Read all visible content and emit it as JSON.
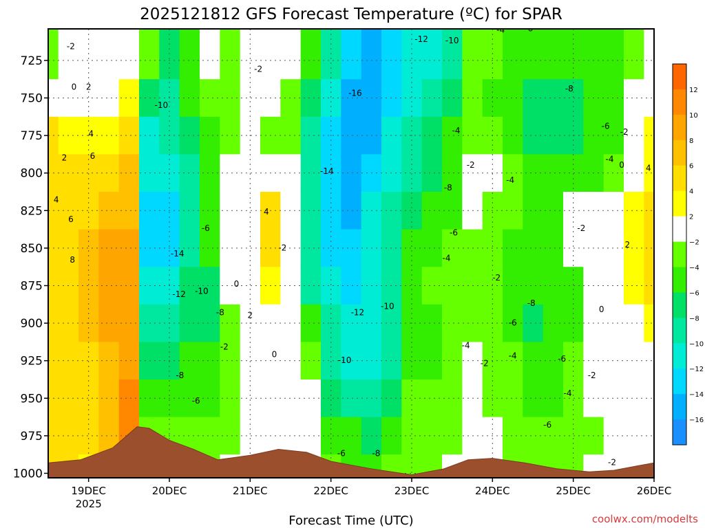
{
  "chart_data": {
    "type": "heatmap",
    "title": "2025121812 GFS Forecast Temperature (ºC) for SPAR",
    "xlabel": "Forecast Time (UTC)",
    "ylabel": "",
    "credit": "coolwx.com/modelts",
    "y_ticks": [
      "725",
      "750",
      "775",
      "800",
      "825",
      "850",
      "875",
      "900",
      "925",
      "950",
      "975",
      "1000"
    ],
    "y_values": [
      725,
      750,
      775,
      800,
      825,
      850,
      875,
      900,
      925,
      950,
      975,
      1000
    ],
    "ylim": [
      1003,
      704
    ],
    "y_direction": "pressure-down",
    "x_ticks": [
      {
        "label": "19DEC",
        "sub": "2025",
        "day": 19
      },
      {
        "label": "20DEC",
        "sub": "",
        "day": 20
      },
      {
        "label": "21DEC",
        "sub": "",
        "day": 21
      },
      {
        "label": "22DEC",
        "sub": "",
        "day": 22
      },
      {
        "label": "23DEC",
        "sub": "",
        "day": 23
      },
      {
        "label": "24DEC",
        "sub": "",
        "day": 24
      },
      {
        "label": "25DEC",
        "sub": "",
        "day": 25
      },
      {
        "label": "26DEC",
        "sub": "",
        "day": 26
      }
    ],
    "xlim": [
      18.5,
      26
    ],
    "grid": true,
    "colorbar": {
      "labels": [
        "12",
        "10",
        "8",
        "6",
        "4",
        "2",
        "−2",
        "−4",
        "−6",
        "−8",
        "−10",
        "−12",
        "−14",
        "−16"
      ],
      "values": [
        12,
        10,
        8,
        6,
        4,
        2,
        -2,
        -4,
        -6,
        -8,
        -10,
        -12,
        -14,
        -16
      ],
      "bin_colors": [
        "#ff6600",
        "#ff8800",
        "#ffa500",
        "#ffc000",
        "#ffde00",
        "#ffff00",
        "#ffffff",
        "#66ff00",
        "#33ee00",
        "#00e066",
        "#00e8a0",
        "#00ecd4",
        "#00d8ff",
        "#00b0ff",
        "#1a90ff"
      ]
    },
    "temperature_columns": [
      {
        "day": 18.5,
        "values": [
          -4,
          -2,
          4,
          4,
          4,
          4,
          4,
          4,
          4,
          4,
          4,
          4
        ]
      },
      {
        "day": 18.75,
        "values": [
          -2,
          0,
          2,
          4,
          4,
          4,
          4,
          4,
          4,
          4,
          4,
          4
        ]
      },
      {
        "day": 19.0,
        "values": [
          -2,
          0,
          2,
          4,
          4,
          6,
          6,
          6,
          4,
          4,
          4,
          2
        ]
      },
      {
        "day": 19.25,
        "values": [
          -2,
          0,
          2,
          4,
          6,
          8,
          8,
          8,
          6,
          6,
          6,
          4
        ]
      },
      {
        "day": 19.5,
        "values": [
          -2,
          2,
          4,
          6,
          6,
          8,
          8,
          8,
          8,
          10,
          10,
          10
        ]
      },
      {
        "day": 19.75,
        "values": [
          -4,
          -8,
          -12,
          -12,
          -14,
          -14,
          -12,
          -10,
          -8,
          -6,
          -4,
          -2
        ]
      },
      {
        "day": 20.0,
        "values": [
          -8,
          -10,
          -10,
          -12,
          -14,
          -14,
          -12,
          -10,
          -8,
          -6,
          -4,
          -2
        ]
      },
      {
        "day": 20.25,
        "values": [
          -6,
          -6,
          -8,
          -10,
          -10,
          -10,
          -8,
          -8,
          -6,
          -6,
          -4,
          -4
        ]
      },
      {
        "day": 20.5,
        "values": [
          -2,
          -4,
          -6,
          -6,
          -6,
          -6,
          -8,
          -8,
          -6,
          -6,
          -4,
          -4
        ]
      },
      {
        "day": 20.75,
        "values": [
          -4,
          -4,
          -4,
          -2,
          -2,
          -2,
          -2,
          -4,
          -4,
          -4,
          -4,
          -2
        ]
      },
      {
        "day": 21.0,
        "values": [
          -2,
          -2,
          -2,
          0,
          0,
          -2,
          0,
          0,
          -2,
          -2,
          -2,
          -2
        ]
      },
      {
        "day": 21.25,
        "values": [
          -2,
          -2,
          -4,
          0,
          4,
          4,
          2,
          0,
          -2,
          -2,
          0,
          0
        ]
      },
      {
        "day": 21.5,
        "values": [
          -2,
          -4,
          -4,
          -2,
          -2,
          -2,
          -2,
          -2,
          0,
          0,
          0,
          2
        ]
      },
      {
        "day": 21.75,
        "values": [
          -6,
          -8,
          -10,
          -10,
          -10,
          -10,
          -10,
          -6,
          -4,
          -2,
          0,
          0
        ]
      },
      {
        "day": 22.0,
        "values": [
          -10,
          -12,
          -14,
          -14,
          -14,
          -14,
          -12,
          -10,
          -10,
          -8,
          -6,
          -4
        ]
      },
      {
        "day": 22.25,
        "values": [
          -14,
          -16,
          -16,
          -16,
          -16,
          -14,
          -14,
          -12,
          -12,
          -10,
          -6,
          -6
        ]
      },
      {
        "day": 22.5,
        "values": [
          -16,
          -16,
          -16,
          -14,
          -12,
          -12,
          -12,
          -12,
          -12,
          -10,
          -8,
          -6
        ]
      },
      {
        "day": 22.75,
        "values": [
          -14,
          -14,
          -12,
          -12,
          -10,
          -10,
          -10,
          -10,
          -10,
          -8,
          -6,
          -4
        ]
      },
      {
        "day": 23.0,
        "values": [
          -12,
          -12,
          -10,
          -10,
          -8,
          -6,
          -6,
          -6,
          -6,
          -4,
          -4,
          -4
        ]
      },
      {
        "day": 23.25,
        "values": [
          -12,
          -10,
          -8,
          -8,
          -6,
          -6,
          -4,
          -6,
          -6,
          -4,
          -4,
          -4
        ]
      },
      {
        "day": 23.5,
        "values": [
          -10,
          -8,
          -6,
          -6,
          -6,
          -4,
          -4,
          -4,
          -4,
          -4,
          -4,
          -2
        ]
      },
      {
        "day": 23.75,
        "values": [
          -4,
          -4,
          -4,
          -2,
          -2,
          -4,
          -4,
          -4,
          -2,
          -2,
          -2,
          -2
        ]
      },
      {
        "day": 24.0,
        "values": [
          -4,
          -6,
          -4,
          -2,
          -4,
          -4,
          -4,
          -4,
          -4,
          -4,
          -2,
          -2
        ]
      },
      {
        "day": 24.25,
        "values": [
          -6,
          -6,
          -6,
          -4,
          -4,
          -6,
          -6,
          -6,
          -4,
          -4,
          -4,
          -4
        ]
      },
      {
        "day": 24.5,
        "values": [
          -6,
          -8,
          -8,
          -6,
          -6,
          -6,
          -6,
          -8,
          -6,
          -6,
          -4,
          -4
        ]
      },
      {
        "day": 24.75,
        "values": [
          -6,
          -8,
          -8,
          -6,
          -6,
          -6,
          -6,
          -6,
          -6,
          -6,
          -4,
          -4
        ]
      },
      {
        "day": 25.0,
        "values": [
          -6,
          -8,
          -8,
          -6,
          -2,
          -2,
          -6,
          -6,
          -4,
          -4,
          -4,
          -4
        ]
      },
      {
        "day": 25.25,
        "values": [
          -6,
          -6,
          -6,
          -6,
          -2,
          -2,
          -2,
          0,
          -2,
          -2,
          -4,
          -2
        ]
      },
      {
        "day": 25.5,
        "values": [
          -6,
          -6,
          -6,
          -4,
          -2,
          0,
          0,
          0,
          -2,
          -2,
          -2,
          -2
        ]
      },
      {
        "day": 25.75,
        "values": [
          -4,
          -2,
          -2,
          -2,
          2,
          2,
          2,
          0,
          -2,
          -2,
          -2,
          -2
        ]
      },
      {
        "day": 26.0,
        "values": [
          -2,
          0,
          2,
          2,
          4,
          4,
          4,
          2,
          -2,
          -2,
          -2,
          -2
        ]
      }
    ],
    "terrain_surface": [
      {
        "day": 18.5,
        "pressure": 993
      },
      {
        "day": 18.9,
        "pressure": 991
      },
      {
        "day": 19.3,
        "pressure": 983
      },
      {
        "day": 19.6,
        "pressure": 969
      },
      {
        "day": 19.75,
        "pressure": 970
      },
      {
        "day": 20.0,
        "pressure": 978
      },
      {
        "day": 20.3,
        "pressure": 984
      },
      {
        "day": 20.6,
        "pressure": 991
      },
      {
        "day": 21.0,
        "pressure": 988
      },
      {
        "day": 21.35,
        "pressure": 984
      },
      {
        "day": 21.7,
        "pressure": 986
      },
      {
        "day": 22.0,
        "pressure": 992
      },
      {
        "day": 22.5,
        "pressure": 997
      },
      {
        "day": 23.0,
        "pressure": 1001
      },
      {
        "day": 23.4,
        "pressure": 997
      },
      {
        "day": 23.7,
        "pressure": 991
      },
      {
        "day": 24.0,
        "pressure": 990
      },
      {
        "day": 24.4,
        "pressure": 993
      },
      {
        "day": 24.8,
        "pressure": 997
      },
      {
        "day": 25.2,
        "pressure": 999
      },
      {
        "day": 25.5,
        "pressure": 998
      },
      {
        "day": 25.8,
        "pressure": 995
      },
      {
        "day": 26.0,
        "pressure": 993
      }
    ],
    "contour_labels": [
      {
        "text": "-2",
        "day": 18.78,
        "pressure": 716
      },
      {
        "text": "0",
        "day": 18.82,
        "pressure": 743
      },
      {
        "text": "2",
        "day": 19.0,
        "pressure": 743
      },
      {
        "text": "-10",
        "day": 19.9,
        "pressure": 755
      },
      {
        "text": "4",
        "day": 19.03,
        "pressure": 774
      },
      {
        "text": "6",
        "day": 19.05,
        "pressure": 789
      },
      {
        "text": "2",
        "day": 18.7,
        "pressure": 790
      },
      {
        "text": "4",
        "day": 18.6,
        "pressure": 818
      },
      {
        "text": "6",
        "day": 18.78,
        "pressure": 831
      },
      {
        "text": "8",
        "day": 18.8,
        "pressure": 858
      },
      {
        "text": "-14",
        "day": 20.1,
        "pressure": 854
      },
      {
        "text": "-12",
        "day": 20.12,
        "pressure": 881
      },
      {
        "text": "-10",
        "day": 20.4,
        "pressure": 879
      },
      {
        "text": "-8",
        "day": 20.63,
        "pressure": 893
      },
      {
        "text": "0",
        "day": 20.83,
        "pressure": 874
      },
      {
        "text": "2",
        "day": 21.0,
        "pressure": 895
      },
      {
        "text": "4",
        "day": 21.2,
        "pressure": 826
      },
      {
        "text": "-6",
        "day": 20.45,
        "pressure": 837
      },
      {
        "text": "-2",
        "day": 20.68,
        "pressure": 916
      },
      {
        "text": "-8",
        "day": 20.13,
        "pressure": 935
      },
      {
        "text": "-6",
        "day": 20.33,
        "pressure": 952
      },
      {
        "text": "0",
        "day": 21.3,
        "pressure": 921
      },
      {
        "text": "-2",
        "day": 21.4,
        "pressure": 850
      },
      {
        "text": "-2",
        "day": 21.1,
        "pressure": 731
      },
      {
        "text": "-16",
        "day": 22.3,
        "pressure": 747
      },
      {
        "text": "-14",
        "day": 21.95,
        "pressure": 799
      },
      {
        "text": "-12",
        "day": 22.33,
        "pressure": 893
      },
      {
        "text": "-10",
        "day": 22.7,
        "pressure": 889
      },
      {
        "text": "-10",
        "day": 22.17,
        "pressure": 925
      },
      {
        "text": "-6",
        "day": 22.13,
        "pressure": 987
      },
      {
        "text": "-8",
        "day": 22.56,
        "pressure": 987
      },
      {
        "text": "-12",
        "day": 23.12,
        "pressure": 711
      },
      {
        "text": "-10",
        "day": 23.5,
        "pressure": 712
      },
      {
        "text": "-4",
        "day": 23.55,
        "pressure": 772
      },
      {
        "text": "-2",
        "day": 23.73,
        "pressure": 795
      },
      {
        "text": "-8",
        "day": 23.45,
        "pressure": 810
      },
      {
        "text": "-6",
        "day": 23.52,
        "pressure": 840
      },
      {
        "text": "-4",
        "day": 23.43,
        "pressure": 857
      },
      {
        "text": "-4",
        "day": 23.67,
        "pressure": 915
      },
      {
        "text": "-2",
        "day": 23.9,
        "pressure": 927
      },
      {
        "text": "-2",
        "day": 24.05,
        "pressure": 870
      },
      {
        "text": "-4",
        "day": 24.22,
        "pressure": 805
      },
      {
        "text": "-4",
        "day": 24.1,
        "pressure": 705
      },
      {
        "text": "-6",
        "day": 24.45,
        "pressure": 704
      },
      {
        "text": "-6",
        "day": 24.25,
        "pressure": 900
      },
      {
        "text": "-4",
        "day": 24.25,
        "pressure": 922
      },
      {
        "text": "-8",
        "day": 24.48,
        "pressure": 887
      },
      {
        "text": "-8",
        "day": 24.95,
        "pressure": 744
      },
      {
        "text": "-6",
        "day": 25.4,
        "pressure": 769
      },
      {
        "text": "-4",
        "day": 25.45,
        "pressure": 791
      },
      {
        "text": "-2",
        "day": 25.63,
        "pressure": 773
      },
      {
        "text": "0",
        "day": 25.6,
        "pressure": 795
      },
      {
        "text": "-2",
        "day": 25.1,
        "pressure": 837
      },
      {
        "text": "0",
        "day": 25.35,
        "pressure": 891
      },
      {
        "text": "2",
        "day": 25.67,
        "pressure": 848
      },
      {
        "text": "4",
        "day": 25.93,
        "pressure": 797
      },
      {
        "text": "-6",
        "day": 24.86,
        "pressure": 924
      },
      {
        "text": "-2",
        "day": 25.23,
        "pressure": 935
      },
      {
        "text": "-4",
        "day": 24.93,
        "pressure": 947
      },
      {
        "text": "-6",
        "day": 24.68,
        "pressure": 968
      },
      {
        "text": "-2",
        "day": 25.48,
        "pressure": 993
      }
    ]
  }
}
